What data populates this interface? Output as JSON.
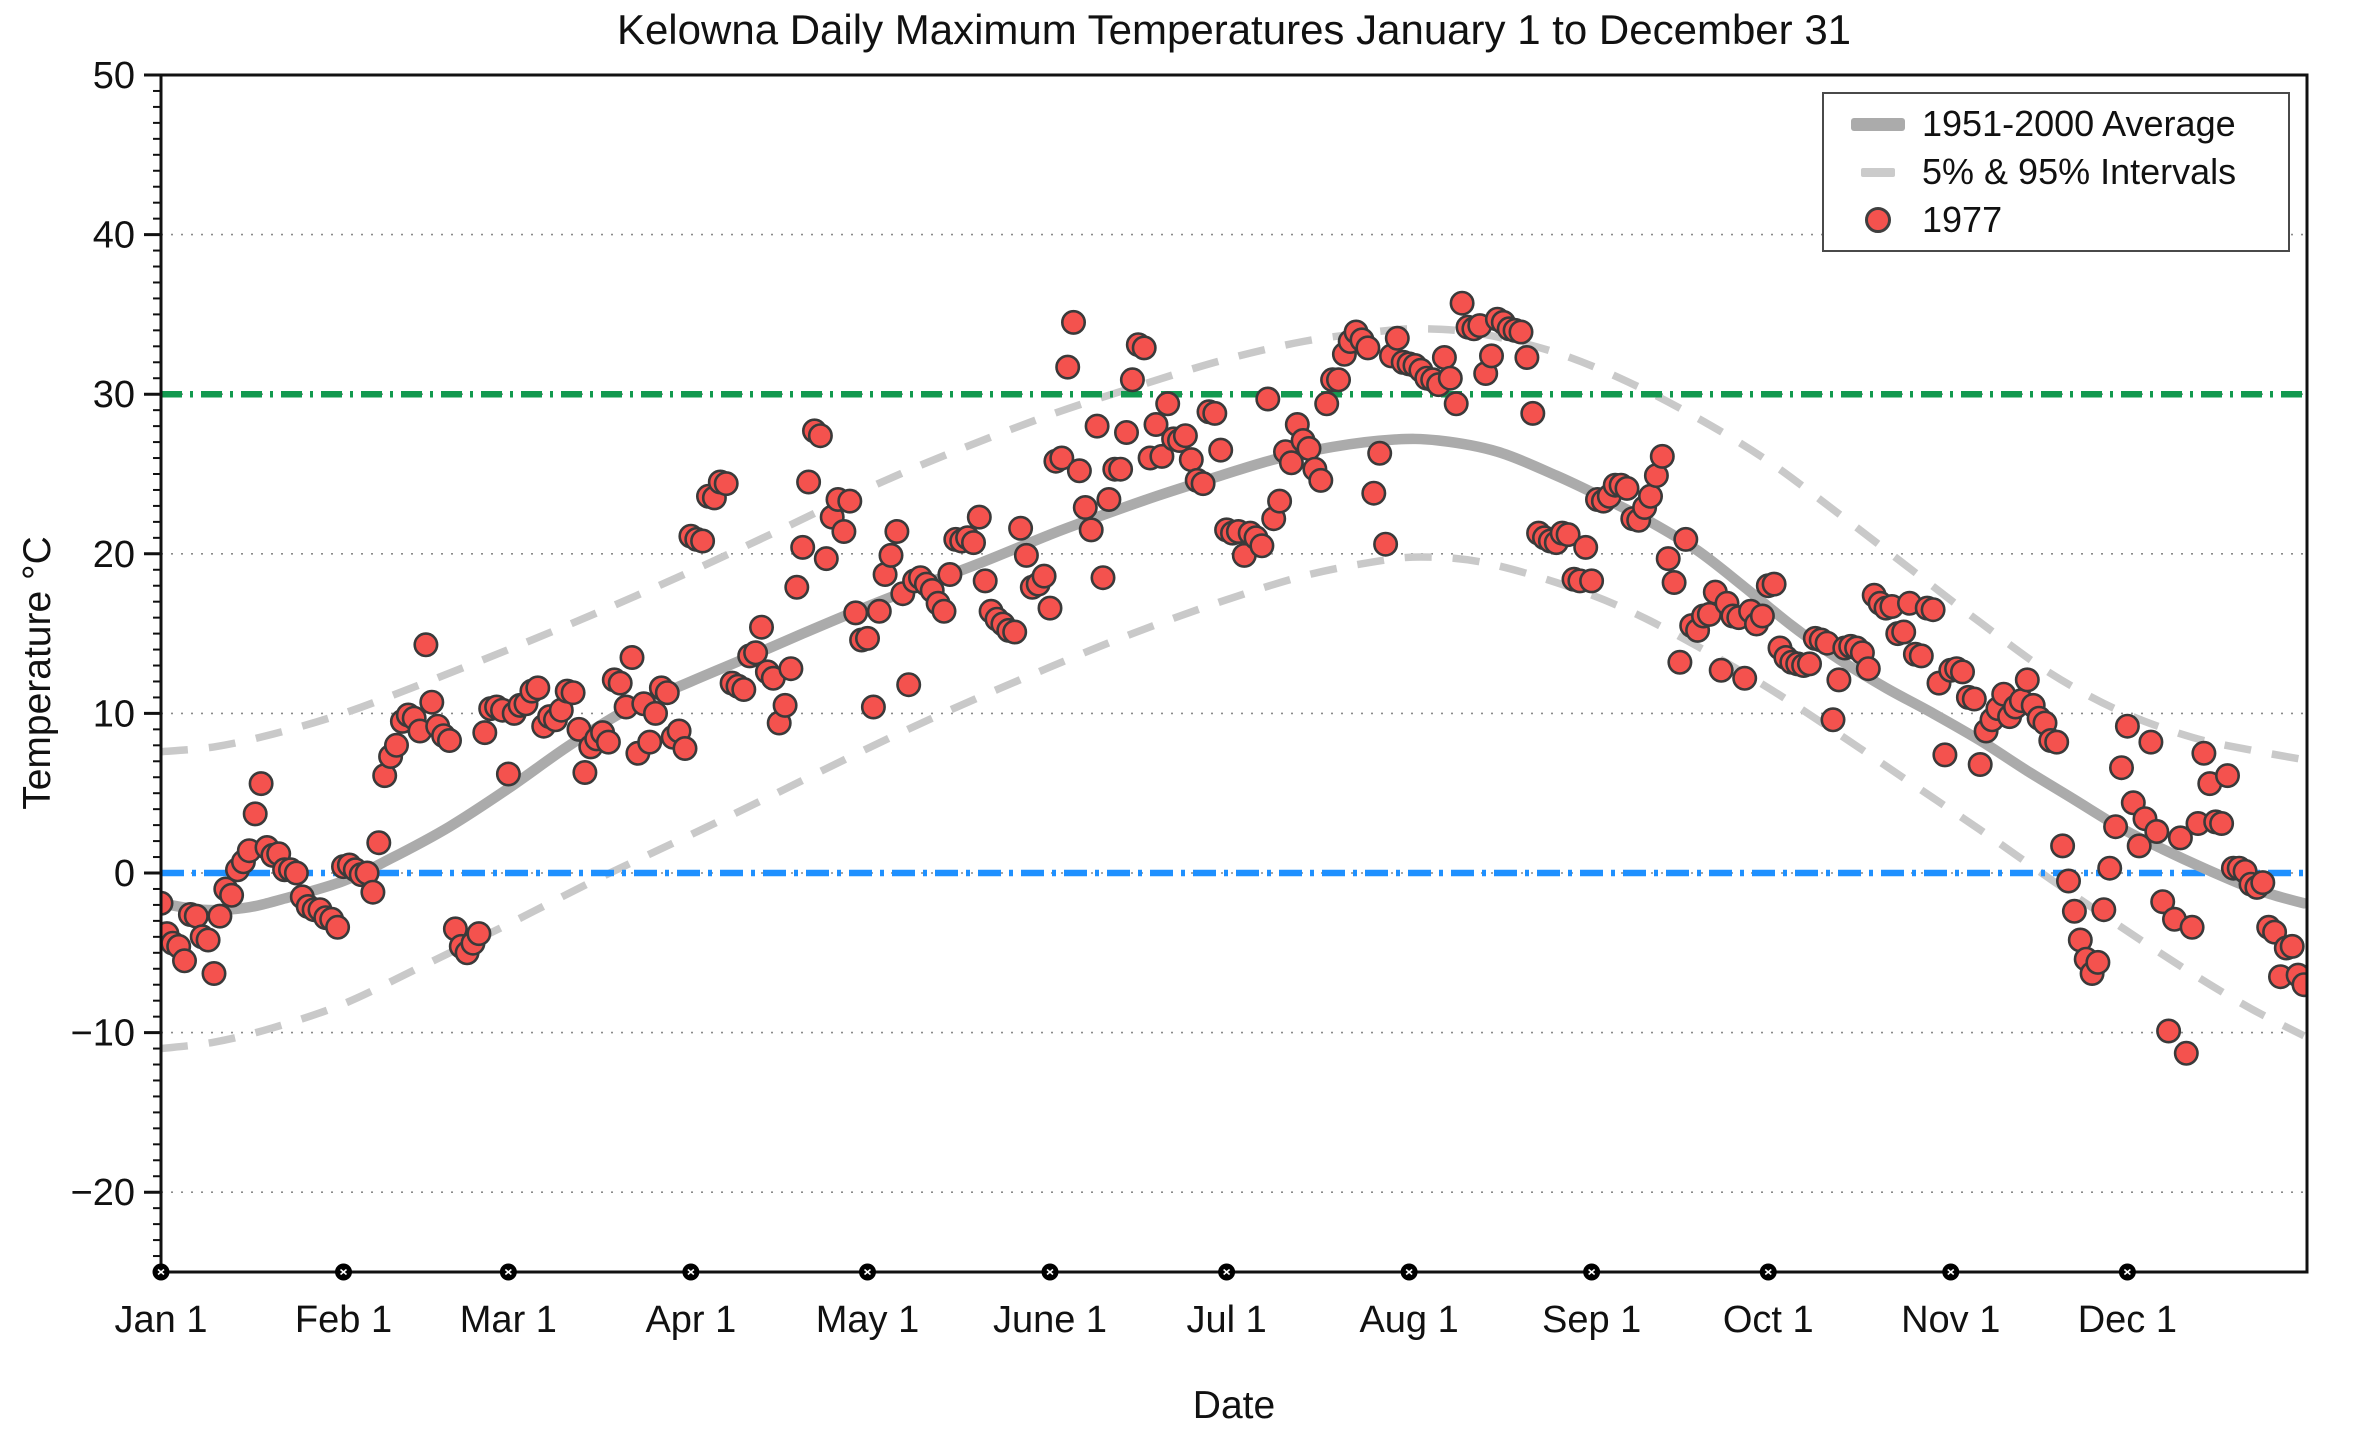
{
  "title": "Kelowna Daily Maximum Temperatures January 1 to December 31",
  "axes": {
    "x_label": "Date",
    "y_label": "Temperature °C",
    "y_tick_labels": [
      "50",
      "40",
      "30",
      "20",
      "10",
      "0",
      "−10",
      "−20"
    ],
    "y_tick_values": [
      50,
      40,
      30,
      20,
      10,
      0,
      -10,
      -20
    ],
    "y_range": [
      -25,
      50
    ],
    "x_tick_labels": [
      "Jan 1",
      "Feb 1",
      "Mar 1",
      "Apr 1",
      "May 1",
      "June 1",
      "Jul 1",
      "Aug 1",
      "Sep 1",
      "Oct 1",
      "Nov 1",
      "Dec 1"
    ],
    "x_tick_days": [
      1,
      32,
      60,
      91,
      121,
      152,
      182,
      213,
      244,
      274,
      305,
      335
    ],
    "grid_values": [
      -20,
      -10,
      0,
      10,
      20,
      30,
      40
    ]
  },
  "legend": {
    "items": [
      {
        "label": "1951-2000 Average",
        "marker": "thick-gray-line"
      },
      {
        "label": "5% & 95% Intervals",
        "marker": "gray-dashed-line"
      },
      {
        "label": "1977",
        "marker": "red-dot"
      }
    ]
  },
  "colors": {
    "scatter_fill": "#f4524e",
    "scatter_edge": "#3a3a3a",
    "mean_line": "#ababab",
    "interval_line": "#c9c9c9",
    "green_line": "#12994f",
    "blue_line": "#1e90ff",
    "grid": "#8a8a8a",
    "spine": "#111111",
    "month_dot": "#000000"
  },
  "chart_data": {
    "type": "scatter",
    "x_unit": "day_of_year",
    "title": "Kelowna Daily Maximum Temperatures January 1 to December 31",
    "xlabel": "Date",
    "ylabel": "Temperature °C",
    "ylim": [
      -25,
      50
    ],
    "xlim_days": [
      1,
      365
    ],
    "grid": "dotted horizontal at every 10 °C",
    "legend_position": "top-right",
    "reference_lines": [
      {
        "name": "30 C threshold",
        "value": 30,
        "style": "dash-dot",
        "color": "#12994f"
      },
      {
        "name": "0 C freezing",
        "value": 0,
        "style": "dash-dot",
        "color": "#1e90ff"
      }
    ],
    "series": [
      {
        "name": "1951-2000 Average",
        "type": "line",
        "style": "solid thick gray",
        "anchors": [
          [
            1,
            -1.9
          ],
          [
            8,
            -2.3
          ],
          [
            15,
            -2.2
          ],
          [
            22,
            -1.6
          ],
          [
            32,
            -0.5
          ],
          [
            40,
            0.9
          ],
          [
            50,
            2.9
          ],
          [
            60,
            5.3
          ],
          [
            70,
            7.9
          ],
          [
            80,
            10.2
          ],
          [
            91,
            12.0
          ],
          [
            100,
            13.4
          ],
          [
            110,
            15.0
          ],
          [
            121,
            16.7
          ],
          [
            130,
            18.0
          ],
          [
            140,
            19.4
          ],
          [
            152,
            21.2
          ],
          [
            160,
            22.3
          ],
          [
            170,
            23.6
          ],
          [
            181,
            24.9
          ],
          [
            190,
            25.9
          ],
          [
            200,
            26.7
          ],
          [
            210,
            27.15
          ],
          [
            218,
            27.1
          ],
          [
            228,
            26.4
          ],
          [
            238,
            24.9
          ],
          [
            246,
            23.5
          ],
          [
            254,
            22.0
          ],
          [
            262,
            20.2
          ],
          [
            270,
            17.9
          ],
          [
            278,
            15.5
          ],
          [
            286,
            13.4
          ],
          [
            294,
            11.6
          ],
          [
            302,
            10.0
          ],
          [
            310,
            8.3
          ],
          [
            318,
            6.4
          ],
          [
            326,
            4.6
          ],
          [
            334,
            2.8
          ],
          [
            341,
            1.5
          ],
          [
            348,
            0.3
          ],
          [
            355,
            -0.8
          ],
          [
            360,
            -1.4
          ],
          [
            365,
            -1.9
          ]
        ]
      },
      {
        "name": "95% Interval",
        "type": "line",
        "style": "dashed gray",
        "anchors": [
          [
            1,
            7.6
          ],
          [
            10,
            7.9
          ],
          [
            20,
            8.7
          ],
          [
            32,
            10.0
          ],
          [
            45,
            11.8
          ],
          [
            60,
            14.0
          ],
          [
            75,
            16.3
          ],
          [
            91,
            18.9
          ],
          [
            105,
            21.3
          ],
          [
            121,
            24.1
          ],
          [
            135,
            26.3
          ],
          [
            152,
            28.7
          ],
          [
            166,
            30.4
          ],
          [
            181,
            32.1
          ],
          [
            195,
            33.3
          ],
          [
            207,
            33.9
          ],
          [
            215,
            34.1
          ],
          [
            225,
            33.8
          ],
          [
            238,
            32.6
          ],
          [
            250,
            30.8
          ],
          [
            262,
            28.5
          ],
          [
            274,
            25.8
          ],
          [
            286,
            22.5
          ],
          [
            298,
            19.1
          ],
          [
            310,
            15.7
          ],
          [
            322,
            12.5
          ],
          [
            334,
            10.1
          ],
          [
            346,
            8.5
          ],
          [
            356,
            7.7
          ],
          [
            365,
            7.1
          ]
        ]
      },
      {
        "name": "5% Interval",
        "type": "line",
        "style": "dashed gray",
        "anchors": [
          [
            1,
            -11.0
          ],
          [
            10,
            -10.6
          ],
          [
            20,
            -9.7
          ],
          [
            32,
            -8.2
          ],
          [
            45,
            -5.9
          ],
          [
            60,
            -3.2
          ],
          [
            75,
            -0.4
          ],
          [
            91,
            2.4
          ],
          [
            105,
            4.9
          ],
          [
            121,
            7.8
          ],
          [
            135,
            10.2
          ],
          [
            152,
            12.9
          ],
          [
            166,
            15.0
          ],
          [
            181,
            17.0
          ],
          [
            195,
            18.6
          ],
          [
            207,
            19.5
          ],
          [
            215,
            19.8
          ],
          [
            225,
            19.5
          ],
          [
            238,
            18.2
          ],
          [
            250,
            16.5
          ],
          [
            262,
            14.2
          ],
          [
            274,
            11.6
          ],
          [
            286,
            8.7
          ],
          [
            298,
            5.7
          ],
          [
            310,
            2.7
          ],
          [
            322,
            -0.4
          ],
          [
            334,
            -3.4
          ],
          [
            346,
            -6.3
          ],
          [
            356,
            -8.5
          ],
          [
            365,
            -10.2
          ]
        ]
      },
      {
        "name": "1977",
        "type": "scatter",
        "style": "red filled circles",
        "first_day": 1,
        "daily_max_c": [
          -1.9,
          -3.8,
          -4.4,
          -4.6,
          -5.5,
          -2.6,
          -2.7,
          -4.0,
          -4.2,
          -6.3,
          -2.7,
          -1.0,
          -1.4,
          0.2,
          0.7,
          1.4,
          3.7,
          5.6,
          1.6,
          1.1,
          1.2,
          0.2,
          0.2,
          0.0,
          -1.5,
          -2.1,
          -2.3,
          -2.3,
          -2.8,
          -2.9,
          -3.4,
          0.4,
          0.5,
          0.2,
          -0.1,
          0.0,
          -1.2,
          1.9,
          6.1,
          7.3,
          8.0,
          9.5,
          9.9,
          9.7,
          8.9,
          14.3,
          10.7,
          9.2,
          8.6,
          8.3,
          -3.5,
          -4.6,
          -5.0,
          -4.4,
          -3.8,
          8.8,
          10.3,
          10.4,
          10.2,
          6.2,
          10.0,
          10.5,
          10.6,
          11.4,
          11.6,
          9.2,
          9.8,
          9.6,
          10.2,
          11.4,
          11.3,
          9.0,
          6.3,
          7.9,
          8.4,
          8.8,
          8.2,
          12.1,
          11.9,
          10.4,
          13.5,
          7.5,
          10.6,
          8.2,
          10.0,
          11.6,
          11.3,
          8.5,
          8.9,
          7.8,
          21.1,
          20.9,
          20.8,
          23.6,
          23.5,
          24.5,
          24.4,
          11.9,
          11.7,
          11.5,
          13.6,
          13.8,
          15.4,
          12.6,
          12.2,
          9.4,
          10.5,
          12.8,
          17.9,
          20.4,
          24.5,
          27.7,
          27.4,
          19.7,
          22.3,
          23.4,
          21.4,
          23.3,
          16.3,
          14.6,
          14.7,
          10.4,
          16.4,
          18.7,
          19.9,
          21.4,
          17.5,
          11.8,
          18.3,
          18.5,
          18.1,
          17.7,
          16.9,
          16.4,
          18.7,
          20.9,
          20.8,
          21.0,
          20.7,
          22.3,
          18.3,
          16.4,
          15.9,
          15.6,
          15.2,
          15.1,
          21.6,
          19.9,
          17.9,
          18.1,
          18.6,
          16.6,
          25.8,
          26.0,
          31.7,
          34.5,
          25.2,
          22.9,
          21.5,
          28.0,
          18.5,
          23.4,
          25.3,
          25.3,
          27.6,
          30.9,
          33.1,
          32.9,
          26.0,
          28.1,
          26.1,
          29.4,
          27.2,
          27.1,
          27.4,
          25.9,
          24.6,
          24.4,
          28.9,
          28.8,
          26.5,
          21.5,
          21.3,
          21.4,
          19.9,
          21.3,
          21.0,
          20.5,
          29.7,
          22.2,
          23.3,
          26.4,
          25.7,
          28.1,
          27.1,
          26.6,
          25.3,
          24.6,
          29.4,
          30.9,
          30.9,
          32.5,
          33.3,
          33.9,
          33.4,
          32.9,
          23.8,
          26.3,
          20.6,
          32.4,
          33.5,
          32.0,
          31.9,
          31.8,
          31.5,
          31.0,
          30.9,
          30.6,
          32.3,
          31.0,
          29.4,
          35.7,
          34.2,
          34.1,
          34.3,
          31.3,
          32.4,
          34.7,
          34.5,
          34.1,
          34.0,
          33.9,
          32.3,
          28.8,
          21.3,
          21.0,
          20.8,
          20.7,
          21.3,
          21.2,
          18.4,
          18.3,
          20.4,
          18.3,
          23.4,
          23.3,
          23.6,
          24.3,
          24.3,
          24.1,
          22.2,
          22.1,
          22.9,
          23.6,
          24.9,
          26.1,
          19.7,
          18.2,
          13.2,
          20.9,
          15.5,
          15.2,
          16.1,
          16.2,
          17.6,
          12.7,
          16.9,
          16.1,
          16.0,
          12.2,
          16.4,
          15.6,
          16.1,
          18.0,
          18.1,
          14.1,
          13.5,
          13.2,
          13.1,
          13.0,
          13.1,
          14.7,
          14.6,
          14.4,
          9.6,
          12.1,
          14.1,
          14.2,
          14.1,
          13.8,
          12.8,
          17.4,
          16.9,
          16.6,
          16.7,
          15.0,
          15.1,
          16.9,
          13.7,
          13.6,
          16.6,
          16.5,
          11.9,
          7.4,
          12.7,
          12.8,
          12.6,
          11.0,
          10.9,
          6.8,
          8.9,
          9.6,
          10.3,
          11.2,
          9.8,
          10.4,
          10.8,
          12.1,
          10.5,
          9.7,
          9.4,
          8.3,
          8.2,
          1.7,
          -0.5,
          -2.4,
          -4.2,
          -5.4,
          -6.3,
          -5.6,
          -2.3,
          0.3,
          2.9,
          6.6,
          9.2,
          4.4,
          1.7,
          3.4,
          8.2,
          2.6,
          -1.8,
          -9.9,
          -2.9,
          2.2,
          -11.3,
          -3.4,
          3.1,
          7.5,
          5.6,
          3.2,
          3.1,
          6.1,
          0.3,
          0.3,
          0.1,
          -0.7,
          -0.9,
          -0.6,
          -3.4,
          -3.7,
          -6.5,
          -4.7,
          -4.6,
          -6.4,
          -7.0
        ]
      }
    ]
  }
}
